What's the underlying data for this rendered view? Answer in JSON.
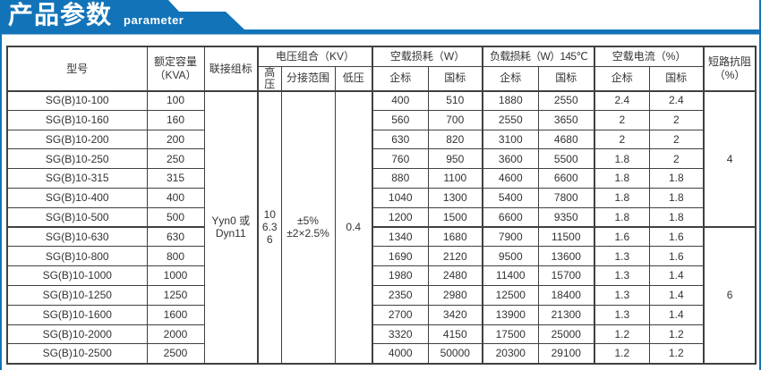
{
  "banner": {
    "title": "产品参数",
    "subtitle": "parameter",
    "color": "#1273b8"
  },
  "colors": {
    "accent": "#1273b8",
    "table_border": "#404040",
    "text": "#333333"
  },
  "table": {
    "header": {
      "model": "型号",
      "capacity": "额定容量（KVA）",
      "connection": "联接组标",
      "voltage_group": "电压组合（KV）",
      "hv": "高压",
      "tap_range": "分接范围",
      "lv": "低压",
      "no_load_loss": "空载损耗（W）",
      "load_loss": "负载损耗（W）145℃",
      "no_load_current": "空载电流（%）",
      "impedance_line1": "短路抗阻",
      "impedance_line2": "（%）",
      "enterprise_std": "企标",
      "national_std": "国标"
    },
    "merged": {
      "connection_lines": [
        "Yyn0 或",
        "Dyn11"
      ],
      "hv_lines": [
        "10",
        "6.3",
        "6"
      ],
      "tap_lines": [
        "±5%",
        "±2×2.5%"
      ],
      "lv": "0.4",
      "impedance_rows_1_7": "4",
      "impedance_rows_8_14": "6"
    },
    "rows": [
      {
        "model": "SG(B)10-100",
        "kva": "100",
        "values": [
          "400",
          "510",
          "1880",
          "2550",
          "2.4",
          "2.4"
        ]
      },
      {
        "model": "SG(B)10-160",
        "kva": "160",
        "values": [
          "560",
          "700",
          "2550",
          "3650",
          "2",
          "2"
        ]
      },
      {
        "model": "SG(B)10-200",
        "kva": "200",
        "values": [
          "630",
          "820",
          "3100",
          "4680",
          "2",
          "2"
        ]
      },
      {
        "model": "SG(B)10-250",
        "kva": "250",
        "values": [
          "760",
          "950",
          "3600",
          "5500",
          "1.8",
          "2"
        ]
      },
      {
        "model": "SG(B)10-315",
        "kva": "315",
        "values": [
          "880",
          "1100",
          "4600",
          "6600",
          "1.8",
          "1.8"
        ]
      },
      {
        "model": "SG(B)10-400",
        "kva": "400",
        "values": [
          "1040",
          "1300",
          "5400",
          "7800",
          "1.8",
          "1.8"
        ]
      },
      {
        "model": "SG(B)10-500",
        "kva": "500",
        "values": [
          "1200",
          "1500",
          "6600",
          "9350",
          "1.8",
          "1.8"
        ]
      },
      {
        "model": "SG(B)10-630",
        "kva": "630",
        "values": [
          "1340",
          "1680",
          "7900",
          "11500",
          "1.6",
          "1.6"
        ]
      },
      {
        "model": "SG(B)10-800",
        "kva": "800",
        "values": [
          "1690",
          "2120",
          "9500",
          "13600",
          "1.3",
          "1.6"
        ]
      },
      {
        "model": "SG(B)10-1000",
        "kva": "1000",
        "values": [
          "1980",
          "2480",
          "11400",
          "15700",
          "1.3",
          "1.4"
        ]
      },
      {
        "model": "SG(B)10-1250",
        "kva": "1250",
        "values": [
          "2350",
          "2980",
          "12500",
          "18400",
          "1.3",
          "1.4"
        ]
      },
      {
        "model": "SG(B)10-1600",
        "kva": "1600",
        "values": [
          "2700",
          "3420",
          "13900",
          "21300",
          "1.3",
          "1.4"
        ]
      },
      {
        "model": "SG(B)10-2000",
        "kva": "2000",
        "values": [
          "3320",
          "4150",
          "17500",
          "25000",
          "1.2",
          "1.2"
        ]
      },
      {
        "model": "SG(B)10-2500",
        "kva": "2500",
        "values": [
          "4000",
          "50000",
          "20300",
          "29100",
          "1.2",
          "1.2"
        ]
      }
    ]
  }
}
